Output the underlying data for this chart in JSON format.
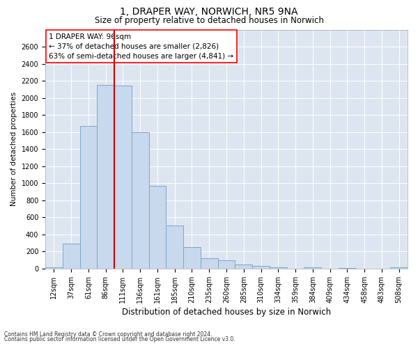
{
  "title_line1": "1, DRAPER WAY, NORWICH, NR5 9NA",
  "title_line2": "Size of property relative to detached houses in Norwich",
  "xlabel": "Distribution of detached houses by size in Norwich",
  "ylabel": "Number of detached properties",
  "categories": [
    "12sqm",
    "37sqm",
    "61sqm",
    "86sqm",
    "111sqm",
    "136sqm",
    "161sqm",
    "185sqm",
    "210sqm",
    "235sqm",
    "260sqm",
    "285sqm",
    "310sqm",
    "334sqm",
    "359sqm",
    "384sqm",
    "409sqm",
    "434sqm",
    "458sqm",
    "483sqm",
    "508sqm"
  ],
  "values": [
    15,
    295,
    1670,
    2150,
    2140,
    1600,
    970,
    505,
    250,
    125,
    95,
    45,
    30,
    20,
    0,
    15,
    0,
    10,
    0,
    0,
    15
  ],
  "bar_color": "#c8d8ed",
  "bar_edge_color": "#7aa8cc",
  "vline_color": "#cc0000",
  "vline_x_index": 3,
  "annotation_text_line1": "1 DRAPER WAY: 96sqm",
  "annotation_text_line2": "← 37% of detached houses are smaller (2,826)",
  "annotation_text_line3": "63% of semi-detached houses are larger (4,841) →",
  "ylim": [
    0,
    2800
  ],
  "yticks": [
    0,
    200,
    400,
    600,
    800,
    1000,
    1200,
    1400,
    1600,
    1800,
    2000,
    2200,
    2400,
    2600
  ],
  "grid_color": "#ffffff",
  "bg_color": "#dde6f0",
  "footer_line1": "Contains HM Land Registry data © Crown copyright and database right 2024.",
  "footer_line2": "Contains public sector information licensed under the Open Government Licence v3.0.",
  "title_fontsize": 10,
  "subtitle_fontsize": 8.5,
  "ylabel_fontsize": 7.5,
  "xlabel_fontsize": 8.5,
  "tick_fontsize": 7,
  "annot_fontsize": 7.5,
  "footer_fontsize": 5.5
}
